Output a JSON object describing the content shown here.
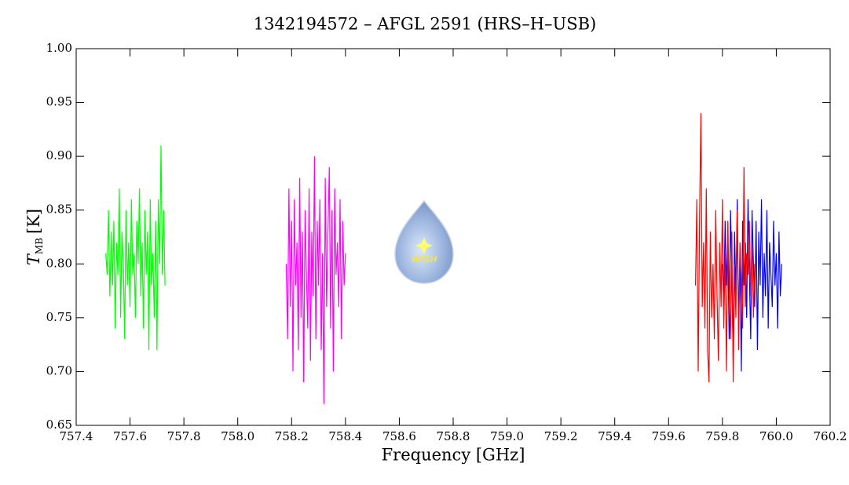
{
  "chart_data": {
    "type": "line",
    "title": "1342194572 – AFGL 2591 (HRS–H–USB)",
    "x_label": "Frequency [GHz]",
    "y_label": "T",
    "y_label_sub": "MB",
    "y_label_unit": "[K]",
    "logo_text": "WISH",
    "xlim": [
      757.4,
      760.2
    ],
    "xticks": [
      757.4,
      757.6,
      757.8,
      {
        "value": 758,
        "label": "758.0"
      },
      758.2,
      758.4,
      758.6,
      758.8,
      {
        "value": 759,
        "label": "759.0"
      },
      759.2,
      759.4,
      759.6,
      759.8,
      {
        "value": 760,
        "label": "760.0"
      },
      760.2
    ],
    "ylim": [
      0.65,
      1.0
    ],
    "yticks": [
      {
        "value": 0.65,
        "label": "0.65"
      },
      {
        "value": 0.7,
        "label": "0.70"
      },
      {
        "value": 0.75,
        "label": "0.75"
      },
      {
        "value": 0.8,
        "label": "0.80"
      },
      {
        "value": 0.85,
        "label": "0.85"
      },
      {
        "value": 0.9,
        "label": "0.90"
      },
      {
        "value": 0.95,
        "label": "0.95"
      },
      {
        "value": 1.0,
        "label": "1.00"
      }
    ],
    "series": [
      {
        "color": "#00ff00",
        "x": [
          757.51,
          757.515,
          757.52,
          757.525,
          757.53,
          757.535,
          757.54,
          757.545,
          757.55,
          757.555,
          757.56,
          757.565,
          757.57,
          757.575,
          757.58,
          757.585,
          757.59,
          757.595,
          757.6,
          757.605,
          757.61,
          757.615,
          757.62,
          757.625,
          757.63,
          757.635,
          757.64,
          757.645,
          757.65,
          757.655,
          757.66,
          757.665,
          757.67,
          757.675,
          757.68,
          757.685,
          757.69,
          757.695,
          757.7,
          757.705,
          757.71,
          757.715,
          757.72,
          757.725,
          757.73
        ],
        "values": [
          0.81,
          0.79,
          0.85,
          0.77,
          0.83,
          0.78,
          0.84,
          0.74,
          0.82,
          0.79,
          0.87,
          0.75,
          0.83,
          0.8,
          0.73,
          0.85,
          0.78,
          0.82,
          0.76,
          0.86,
          0.79,
          0.81,
          0.75,
          0.84,
          0.8,
          0.87,
          0.77,
          0.82,
          0.74,
          0.85,
          0.79,
          0.83,
          0.72,
          0.86,
          0.78,
          0.81,
          0.75,
          0.84,
          0.72,
          0.86,
          0.8,
          0.91,
          0.79,
          0.85,
          0.78
        ]
      },
      {
        "color": "#ff00ff",
        "x": [
          758.18,
          758.185,
          758.19,
          758.195,
          758.2,
          758.205,
          758.21,
          758.215,
          758.22,
          758.225,
          758.23,
          758.235,
          758.24,
          758.245,
          758.25,
          758.255,
          758.26,
          758.265,
          758.27,
          758.275,
          758.28,
          758.285,
          758.29,
          758.295,
          758.3,
          758.305,
          758.31,
          758.315,
          758.32,
          758.325,
          758.33,
          758.335,
          758.34,
          758.345,
          758.35,
          758.355,
          758.36,
          758.365,
          758.37,
          758.375,
          758.38,
          758.385,
          758.39,
          758.395,
          758.4
        ],
        "values": [
          0.8,
          0.73,
          0.87,
          0.76,
          0.84,
          0.7,
          0.86,
          0.78,
          0.82,
          0.72,
          0.88,
          0.75,
          0.83,
          0.69,
          0.85,
          0.79,
          0.74,
          0.87,
          0.71,
          0.83,
          0.77,
          0.9,
          0.73,
          0.84,
          0.78,
          0.86,
          0.72,
          0.81,
          0.67,
          0.88,
          0.76,
          0.83,
          0.89,
          0.74,
          0.85,
          0.7,
          0.87,
          0.79,
          0.82,
          0.76,
          0.86,
          0.73,
          0.84,
          0.78,
          0.81
        ]
      },
      {
        "color": "#0000ff",
        "x": [
          759.8,
          759.805,
          759.81,
          759.815,
          759.82,
          759.825,
          759.83,
          759.835,
          759.84,
          759.845,
          759.85,
          759.855,
          759.86,
          759.865,
          759.87,
          759.875,
          759.88,
          759.885,
          759.89,
          759.895,
          759.9,
          759.905,
          759.91,
          759.915,
          759.92,
          759.925,
          759.93,
          759.935,
          759.94,
          759.945,
          759.95,
          759.955,
          759.96,
          759.965,
          759.97,
          759.975,
          759.98,
          759.985,
          759.99,
          759.995,
          760.0,
          760.005,
          760.01,
          760.015,
          760.02
        ],
        "values": [
          0.8,
          0.76,
          0.84,
          0.78,
          0.82,
          0.73,
          0.85,
          0.79,
          0.71,
          0.83,
          0.77,
          0.86,
          0.74,
          0.81,
          0.7,
          0.84,
          0.78,
          0.82,
          0.75,
          0.86,
          0.79,
          0.73,
          0.85,
          0.8,
          0.76,
          0.84,
          0.72,
          0.83,
          0.78,
          0.86,
          0.75,
          0.81,
          0.77,
          0.85,
          0.74,
          0.82,
          0.79,
          0.76,
          0.84,
          0.78,
          0.81,
          0.74,
          0.83,
          0.77,
          0.8
        ]
      },
      {
        "color": "#ff0000",
        "x": [
          759.7,
          759.705,
          759.71,
          759.715,
          759.72,
          759.725,
          759.73,
          759.735,
          759.74,
          759.745,
          759.75,
          759.755,
          759.76,
          759.765,
          759.77,
          759.775,
          759.78,
          759.785,
          759.79,
          759.795,
          759.8,
          759.805,
          759.81,
          759.815,
          759.82,
          759.825,
          759.83,
          759.835,
          759.84,
          759.845,
          759.85,
          759.855,
          759.86,
          759.865,
          759.87,
          759.875,
          759.88,
          759.885,
          759.89,
          759.895,
          759.9,
          759.905,
          759.91,
          759.915,
          759.92
        ],
        "values": [
          0.78,
          0.86,
          0.7,
          0.84,
          0.94,
          0.76,
          0.82,
          0.74,
          0.87,
          0.72,
          0.69,
          0.83,
          0.75,
          0.8,
          0.73,
          0.85,
          0.77,
          0.71,
          0.82,
          0.76,
          0.86,
          0.74,
          0.81,
          0.7,
          0.84,
          0.77,
          0.73,
          0.83,
          0.69,
          0.8,
          0.75,
          0.85,
          0.72,
          0.82,
          0.78,
          0.74,
          0.89,
          0.76,
          0.81,
          0.79,
          0.84,
          0.77,
          0.82,
          0.75,
          0.8
        ]
      }
    ]
  }
}
